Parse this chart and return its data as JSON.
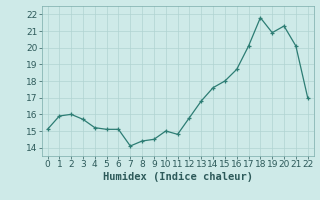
{
  "x": [
    0,
    1,
    2,
    3,
    4,
    5,
    6,
    7,
    8,
    9,
    10,
    11,
    12,
    13,
    14,
    15,
    16,
    17,
    18,
    19,
    20,
    21,
    22
  ],
  "y": [
    15.1,
    15.9,
    16.0,
    15.7,
    15.2,
    15.1,
    15.1,
    14.1,
    14.4,
    14.5,
    15.0,
    14.8,
    15.8,
    16.8,
    17.6,
    18.0,
    18.7,
    20.1,
    21.8,
    20.9,
    21.3,
    20.1,
    17.0
  ],
  "line_color": "#2d7d74",
  "marker": "+",
  "marker_size": 3.5,
  "linewidth": 0.9,
  "xlabel": "Humidex (Indice chaleur)",
  "xlim": [
    -0.5,
    22.5
  ],
  "ylim": [
    13.5,
    22.5
  ],
  "yticks": [
    14,
    15,
    16,
    17,
    18,
    19,
    20,
    21,
    22
  ],
  "xticks": [
    0,
    1,
    2,
    3,
    4,
    5,
    6,
    7,
    8,
    9,
    10,
    11,
    12,
    13,
    14,
    15,
    16,
    17,
    18,
    19,
    20,
    21,
    22
  ],
  "bg_color": "#ceeae8",
  "grid_color": "#b0d4d2",
  "xlabel_fontsize": 7.5,
  "tick_fontsize": 6.5
}
